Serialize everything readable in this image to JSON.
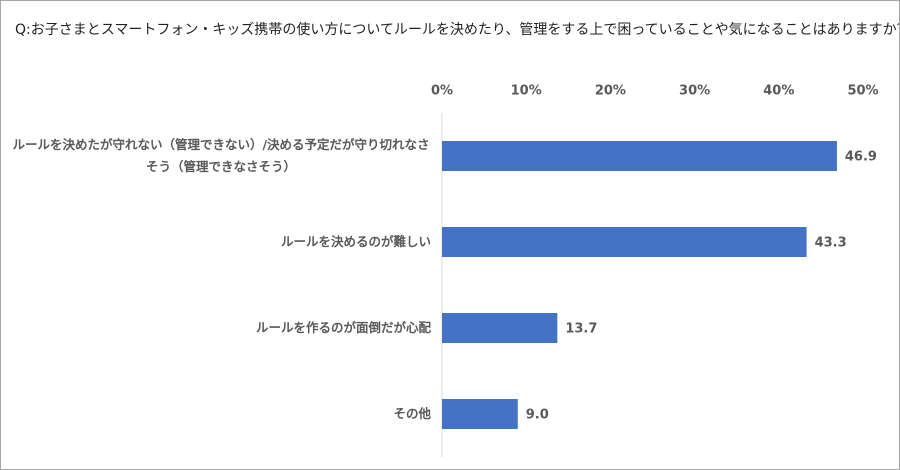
{
  "chart_data": {
    "type": "bar",
    "orientation": "horizontal",
    "title": "Q:お子さまとスマートフォン・キッズ携帯の使い方についてルールを決めたり、管理をする上で困っていることや気になることはありますか？",
    "categories": [
      "ルールを決めたが守れない（管理できない）/決める予定だが守り切れなさそう（管理できなさそう）",
      "ルールを決めるのが難しい",
      "ルールを作るのが面倒だが心配",
      "その他"
    ],
    "values": [
      46.9,
      43.3,
      13.7,
      9.0
    ],
    "value_labels": [
      "46.9",
      "43.3",
      "13.7",
      "9.0"
    ],
    "color": "#4472c4",
    "xlim": [
      0,
      50
    ],
    "xticks": [
      {
        "value": 0,
        "label": "0%"
      },
      {
        "value": 10,
        "label": "10%"
      },
      {
        "value": 20,
        "label": "20%"
      },
      {
        "value": 30,
        "label": "30%"
      },
      {
        "value": 40,
        "label": "40%"
      },
      {
        "value": 50,
        "label": "50%"
      }
    ],
    "grid": false
  }
}
